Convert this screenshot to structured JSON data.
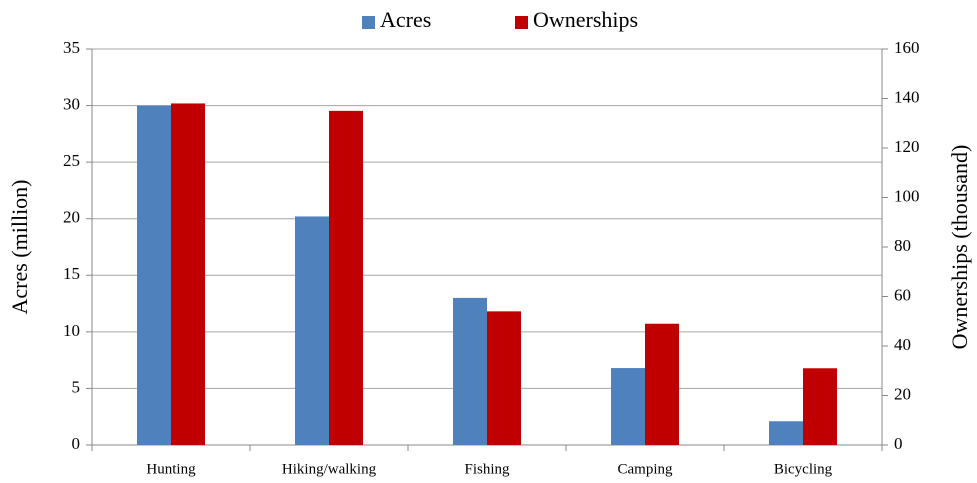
{
  "chart_data": {
    "type": "bar",
    "categories": [
      "Hunting",
      "Hiking/walking",
      "Fishing",
      "Camping",
      "Bicycling"
    ],
    "series": [
      {
        "name": "Acres",
        "color": "#4f81bd",
        "values": [
          30,
          20.2,
          13,
          6.8,
          2.1
        ]
      },
      {
        "name": "Ownerships",
        "color": "#c00000",
        "axis": "y2",
        "values": [
          138,
          135,
          54,
          49,
          31
        ]
      }
    ],
    "ylabel": "Acres (million)",
    "y2label": "Ownerships (thousand)",
    "ylim": [
      0,
      35
    ],
    "yticks": [
      0,
      5,
      10,
      15,
      20,
      25,
      30,
      35
    ],
    "y2lim": [
      0,
      160
    ],
    "y2ticks": [
      0,
      20,
      40,
      60,
      80,
      100,
      120,
      140,
      160
    ],
    "grid": true,
    "legend": "top"
  }
}
